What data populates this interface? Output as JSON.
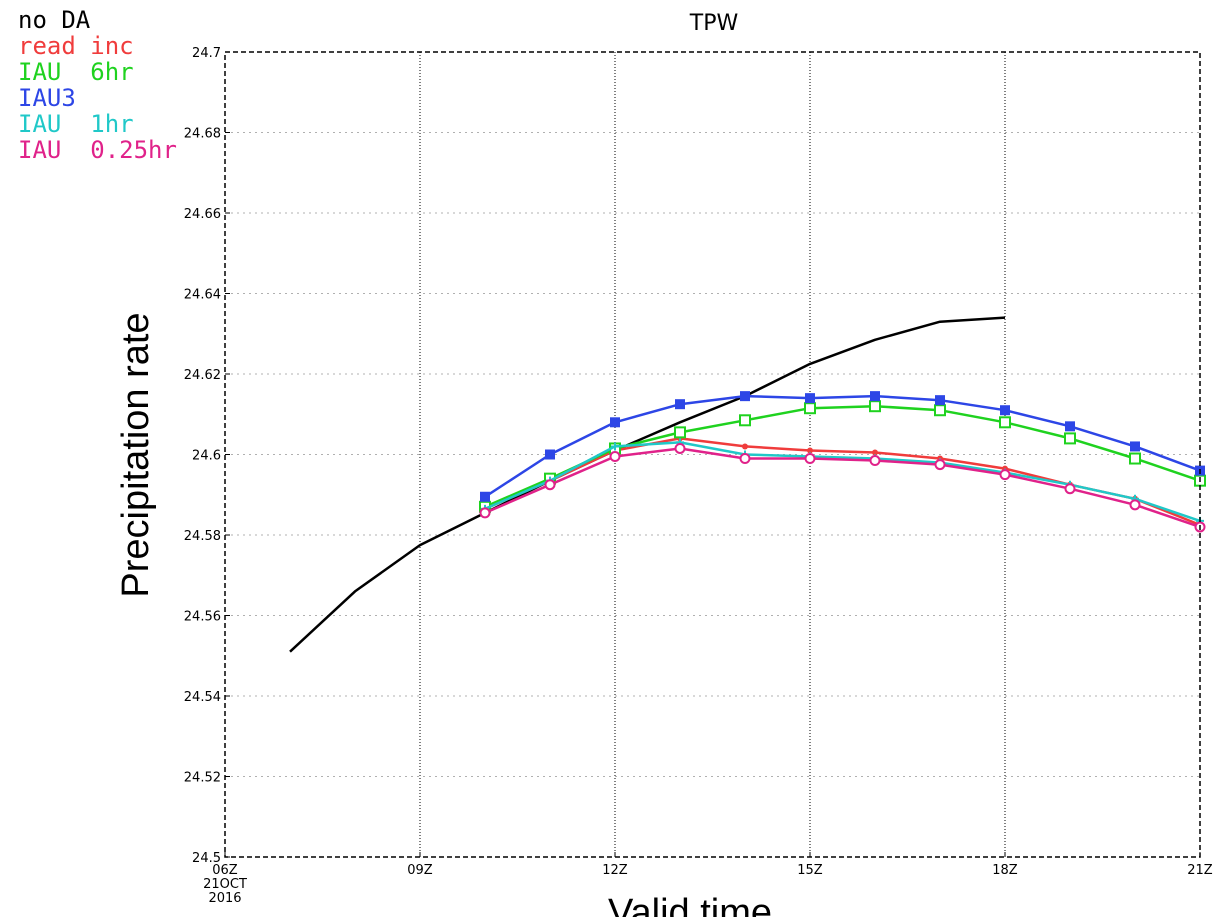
{
  "chart_data": {
    "type": "line",
    "title": "TPW",
    "xlabel": "Valid time",
    "ylabel": "Precipitation rate",
    "x_ticks": [
      {
        "hour": 6,
        "label": "06Z",
        "sub1": "21OCT",
        "sub2": "2016"
      },
      {
        "hour": 9,
        "label": "09Z",
        "sub1": "",
        "sub2": ""
      },
      {
        "hour": 12,
        "label": "12Z",
        "sub1": "",
        "sub2": ""
      },
      {
        "hour": 15,
        "label": "15Z",
        "sub1": "",
        "sub2": ""
      },
      {
        "hour": 18,
        "label": "18Z",
        "sub1": "",
        "sub2": ""
      },
      {
        "hour": 21,
        "label": "21Z",
        "sub1": "",
        "sub2": ""
      }
    ],
    "y_ticks": [
      "24.5",
      "24.52",
      "24.54",
      "24.56",
      "24.58",
      "24.6",
      "24.62",
      "24.64",
      "24.66",
      "24.68",
      "24.7"
    ],
    "xlim": [
      6,
      21
    ],
    "ylim": [
      24.5,
      24.7
    ],
    "grid": true,
    "legend_position": "top-left",
    "series": [
      {
        "name": "no DA",
        "color": "#000000",
        "marker": "none",
        "x": [
          7,
          8,
          9,
          10,
          11,
          12,
          13,
          14,
          15,
          16,
          17,
          18
        ],
        "y": [
          24.551,
          24.566,
          24.5775,
          24.5855,
          24.5935,
          24.601,
          24.608,
          24.6145,
          24.6225,
          24.6285,
          24.633,
          24.634
        ]
      },
      {
        "name": "read inc",
        "color": "#f03c3c",
        "marker": "circle-small",
        "x": [
          10,
          11,
          12,
          13,
          14,
          15,
          16,
          17,
          18,
          19,
          20,
          21
        ],
        "y": [
          24.5865,
          24.5935,
          24.601,
          24.604,
          24.602,
          24.601,
          24.6005,
          24.599,
          24.5965,
          24.5925,
          24.589,
          24.5825
        ]
      },
      {
        "name": "IAU  6hr",
        "color": "#1fd21f",
        "marker": "square-open",
        "x": [
          10,
          11,
          12,
          13,
          14,
          15,
          16,
          17,
          18,
          19,
          20,
          21
        ],
        "y": [
          24.587,
          24.594,
          24.6015,
          24.6055,
          24.6085,
          24.6115,
          24.612,
          24.611,
          24.608,
          24.604,
          24.599,
          24.5935
        ]
      },
      {
        "name": "IAU3",
        "color": "#2d46e6",
        "marker": "square-filled",
        "x": [
          10,
          11,
          12,
          13,
          14,
          15,
          16,
          17,
          18,
          19,
          20,
          21
        ],
        "y": [
          24.5895,
          24.6,
          24.608,
          24.6125,
          24.6145,
          24.614,
          24.6145,
          24.6135,
          24.611,
          24.607,
          24.602,
          24.596
        ]
      },
      {
        "name": "IAU  1hr",
        "color": "#20c8c8",
        "marker": "cross",
        "x": [
          10,
          11,
          12,
          13,
          14,
          15,
          16,
          17,
          18,
          19,
          20,
          21
        ],
        "y": [
          24.5865,
          24.5935,
          24.602,
          24.603,
          24.6,
          24.5995,
          24.599,
          24.598,
          24.5955,
          24.5925,
          24.589,
          24.5835
        ]
      },
      {
        "name": "IAU  0.25hr",
        "color": "#e0228a",
        "marker": "circle-open",
        "x": [
          10,
          11,
          12,
          13,
          14,
          15,
          16,
          17,
          18,
          19,
          20,
          21
        ],
        "y": [
          24.5855,
          24.5925,
          24.5995,
          24.6015,
          24.599,
          24.599,
          24.5985,
          24.5975,
          24.595,
          24.5915,
          24.5875,
          24.582
        ]
      }
    ]
  }
}
